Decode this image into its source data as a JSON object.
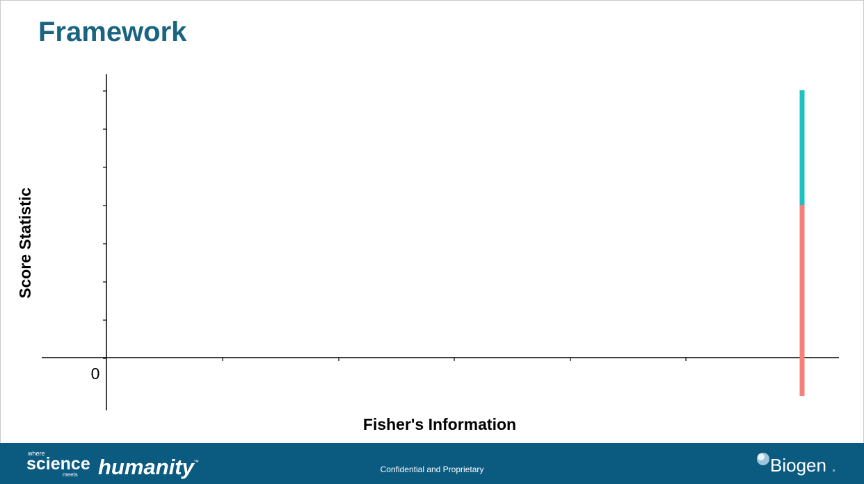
{
  "slide": {
    "title": "Framework"
  },
  "chart_data": {
    "type": "line",
    "title": "",
    "xlabel": "Fisher's Information",
    "ylabel": "Score Statistic",
    "y_tick_labels": [
      "0"
    ],
    "x_tick_count": 6,
    "y_tick_count": 8,
    "grid": false,
    "series": [
      {
        "color": "#f77f79",
        "x": [
          1,
          1
        ],
        "y": [
          -0.2,
          0.8
        ]
      },
      {
        "color": "#1fc1c0",
        "x": [
          1,
          1
        ],
        "y": [
          0.8,
          1.4
        ]
      }
    ]
  },
  "footer": {
    "tagline_where": "where",
    "tagline_science": "science",
    "tagline_meets": "meets",
    "tagline_humanity": "humanity",
    "tagline_tm": "™",
    "confidential": "Confidential and Proprietary",
    "logo_text": "Biogen",
    "logo_dot": "."
  }
}
